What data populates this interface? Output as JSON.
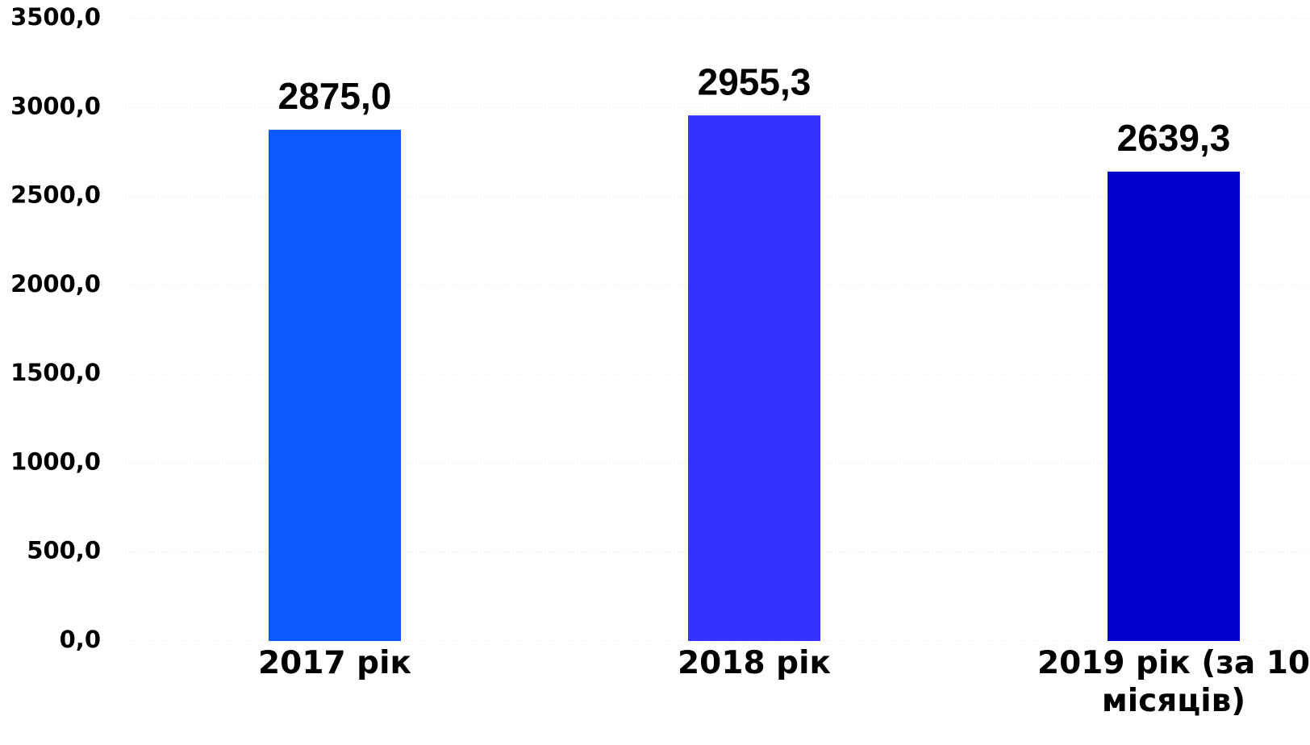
{
  "chart_data": {
    "type": "bar",
    "categories": [
      "2017 рік",
      "2018 рік",
      "2019 рік (за 10 місяців)"
    ],
    "values": [
      2875.0,
      2955.3,
      2639.3
    ],
    "value_labels": [
      "2875,0",
      "2955,3",
      "2639,3"
    ],
    "colors": [
      "#0a5aff",
      "#3333ff",
      "#0000cc"
    ],
    "ylim": [
      0,
      3500
    ],
    "yticks": [
      {
        "value": 0,
        "label": "0,0"
      },
      {
        "value": 500,
        "label": "500,0"
      },
      {
        "value": 1000,
        "label": "1000,0"
      },
      {
        "value": 1500,
        "label": "1500,0"
      },
      {
        "value": 2000,
        "label": "2000,0"
      },
      {
        "value": 2500,
        "label": "2500,0"
      },
      {
        "value": 3000,
        "label": "3000,0"
      },
      {
        "value": 3500,
        "label": "3500,0"
      }
    ],
    "grid": true
  }
}
